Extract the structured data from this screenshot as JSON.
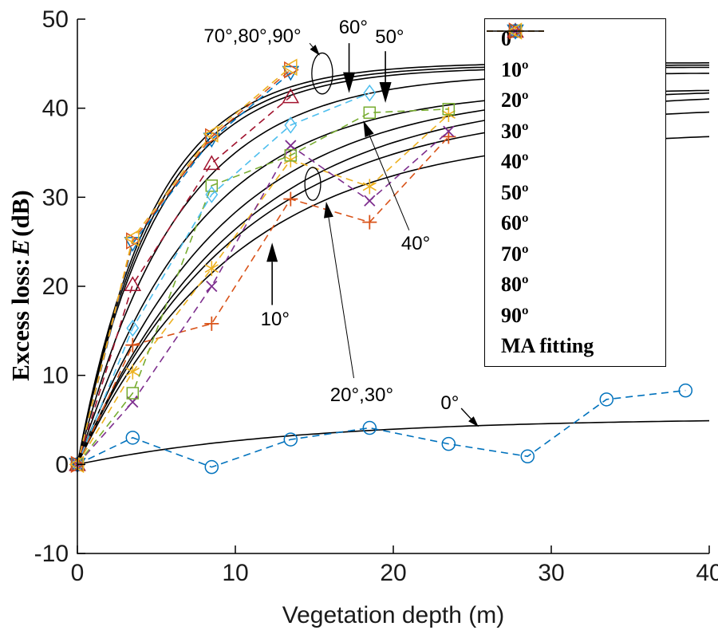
{
  "figure": {
    "xlabel": "Vegetation depth (m)",
    "ylabel_prefix": "Excess loss:",
    "ylabel_emph": "E",
    "ylabel_suffix": "(dB)"
  },
  "chart_data": {
    "type": "line",
    "title": "",
    "xlabel": "Vegetation depth (m)",
    "ylabel": "Excess loss: E (dB)",
    "xlim": [
      0,
      40
    ],
    "ylim": [
      -10,
      50
    ],
    "xticks": [
      0,
      10,
      20,
      30,
      40
    ],
    "yticks": [
      -10,
      0,
      10,
      20,
      30,
      40,
      50
    ],
    "grid": false,
    "legend_position": "upper right",
    "series": [
      {
        "name": "0º",
        "color": "#0072BD",
        "marker": "circle",
        "line": "dashed",
        "x": [
          0,
          3.5,
          8.5,
          13.5,
          18.5,
          23.5,
          28.5,
          33.5,
          38.5
        ],
        "y": [
          0,
          3,
          -0.3,
          2.8,
          4.1,
          2.3,
          0.9,
          7.3,
          8.3
        ]
      },
      {
        "name": "10º",
        "color": "#D95319",
        "marker": "plus",
        "line": "dashed",
        "x": [
          0,
          3.5,
          8.5,
          13.5,
          18.5,
          23.5
        ],
        "y": [
          0,
          13.4,
          15.8,
          29.8,
          27.2,
          36.8
        ]
      },
      {
        "name": "20º",
        "color": "#EDB120",
        "marker": "asterisk",
        "line": "dashed",
        "x": [
          0,
          3.5,
          8.5,
          13.5,
          18.5,
          23.5
        ],
        "y": [
          0,
          10.4,
          22,
          34.2,
          31.2,
          39.3
        ]
      },
      {
        "name": "30º",
        "color": "#7E2F8E",
        "marker": "x",
        "line": "dashed",
        "x": [
          0,
          3.5,
          8.5,
          13.5,
          18.5,
          23.5
        ],
        "y": [
          0,
          7,
          20,
          35.8,
          29.6,
          37.4
        ]
      },
      {
        "name": "40º",
        "color": "#77AC30",
        "marker": "square",
        "line": "dashed",
        "x": [
          0,
          3.5,
          8.5,
          13.5,
          18.5,
          23.5
        ],
        "y": [
          0,
          8,
          31.3,
          34.7,
          39.5,
          39.9
        ]
      },
      {
        "name": "50º",
        "color": "#4DBEEE",
        "marker": "diamond",
        "line": "dashed",
        "x": [
          0,
          3.5,
          8.5,
          13.5,
          18.5
        ],
        "y": [
          0,
          15.3,
          30.3,
          38.1,
          41.7
        ]
      },
      {
        "name": "60º",
        "color": "#A2142F",
        "marker": "triangle-up",
        "line": "dashed",
        "x": [
          0,
          3.5,
          8.5,
          13.5
        ],
        "y": [
          0,
          20.2,
          33.8,
          41.3
        ]
      },
      {
        "name": "70º",
        "color": "#0072BD",
        "marker": "triangle-down",
        "line": "dashed",
        "x": [
          0,
          3.5,
          8.5,
          13.5
        ],
        "y": [
          0,
          24.8,
          36.5,
          44.0
        ]
      },
      {
        "name": "80º",
        "color": "#D95319",
        "marker": "triangle-right",
        "line": "dashed",
        "x": [
          0,
          3.5,
          8.5,
          13.5
        ],
        "y": [
          0,
          25.1,
          36.8,
          44.3
        ]
      },
      {
        "name": "90º",
        "color": "#EDB120",
        "marker": "triangle-left",
        "line": "dashed",
        "x": [
          0,
          3.5,
          8.5,
          13.5
        ],
        "y": [
          0,
          25.4,
          37.1,
          44.6
        ]
      }
    ],
    "ma_fitting": {
      "name": "MA fitting",
      "color": "#000000",
      "model": "E = Emax*(1-exp(-depth/k))",
      "curves": [
        {
          "angle": "0º",
          "Emax": 5.2,
          "k": 14
        },
        {
          "angle": "10º",
          "Emax": 37.5,
          "k": 10
        },
        {
          "angle": "20º",
          "Emax": 40.3,
          "k": 10
        },
        {
          "angle": "30º",
          "Emax": 41.8,
          "k": 10
        },
        {
          "angle": "40º",
          "Emax": 42.2,
          "k": 9
        },
        {
          "angle": "50º",
          "Emax": 42.2,
          "k": 7.5
        },
        {
          "angle": "60º",
          "Emax": 44.0,
          "k": 6.3
        },
        {
          "angle": "70º",
          "Emax": 44.6,
          "k": 5.1
        },
        {
          "angle": "80º",
          "Emax": 44.85,
          "k": 4.95
        },
        {
          "angle": "90º",
          "Emax": 45.1,
          "k": 4.8
        }
      ]
    },
    "annotations": [
      {
        "label": "70°,80°,90°",
        "label_at": [
          8.0,
          47.4
        ],
        "font": 24,
        "lw": 1,
        "arrow": {
          "from": [
            14.7,
            47.3
          ],
          "to": [
            15.35,
            45.9
          ],
          "head": [
            14,
            9
          ]
        },
        "ellipse": {
          "center": [
            15.5,
            43.9
          ],
          "radius": [
            0.66,
            2.3
          ]
        }
      },
      {
        "label": "60°",
        "label_at": [
          16.55,
          48.4
        ],
        "font": 24,
        "lw": 1.6,
        "arrow": {
          "from": [
            17.2,
            47.3
          ],
          "to": [
            17.2,
            41.7
          ],
          "head": [
            26,
            15
          ]
        }
      },
      {
        "label": "50°",
        "label_at": [
          18.85,
          47.3
        ],
        "font": 24,
        "lw": 1.6,
        "arrow": {
          "from": [
            19.5,
            46.4
          ],
          "to": [
            19.5,
            40.6
          ],
          "head": [
            26,
            15
          ]
        }
      },
      {
        "label": "40°",
        "label_at": [
          20.5,
          24.1
        ],
        "font": 24,
        "lw": 1,
        "arrow": {
          "from": [
            21.0,
            26.3
          ],
          "to": [
            18.1,
            38.6
          ],
          "head": [
            20,
            12
          ]
        }
      },
      {
        "label": "20°,30°",
        "label_at": [
          16.0,
          7.1
        ],
        "font": 24,
        "lw": 1,
        "arrow": {
          "from": [
            17.5,
            9.7
          ],
          "to": [
            15.75,
            29.5
          ],
          "head": [
            20,
            12
          ]
        },
        "ellipse": {
          "center": [
            14.9,
            31.5
          ],
          "radius": [
            0.5,
            1.85
          ]
        }
      },
      {
        "label": "10°",
        "label_at": [
          11.6,
          15.6
        ],
        "font": 24,
        "lw": 1.6,
        "arrow": {
          "from": [
            12.33,
            17.9
          ],
          "to": [
            12.33,
            24.9
          ],
          "head": [
            24,
            14
          ]
        }
      },
      {
        "label": "0°",
        "label_at": [
          23.0,
          6.2
        ],
        "font": 24,
        "lw": 1.4,
        "arrow": {
          "from": [
            24.3,
            6.3
          ],
          "to": [
            25.4,
            4.2
          ],
          "head": [
            14,
            9
          ]
        }
      }
    ]
  }
}
